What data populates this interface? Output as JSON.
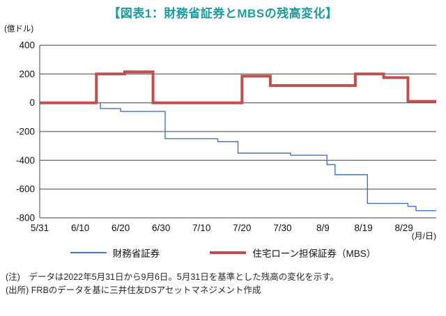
{
  "page": {
    "title": "【図表1：財務省証券とMBSの残高変化】",
    "title_color": "#1a9b9b",
    "notes": [
      "(注)　データは2022年5月31日から9月6日。5月31日を基準とした残高の変化を示す。",
      "(出所) FRBのデータを基に三井住友DSアセットマネジメント作成"
    ]
  },
  "chart_data": {
    "type": "line",
    "title": "【図表1：財務省証券とMBSの残高変化】",
    "y_axis_unit": "(億ドル)",
    "x_axis_unit": "(月/日)",
    "ylim": [
      -800,
      400
    ],
    "y_ticks": [
      400,
      200,
      0,
      -200,
      -400,
      -600,
      -800
    ],
    "grid": true,
    "legend_position": "bottom",
    "x_domain_days": [
      0,
      98
    ],
    "x_ticks": [
      {
        "pos": 0,
        "label": "5/31"
      },
      {
        "pos": 10,
        "label": "6/10"
      },
      {
        "pos": 20,
        "label": "6/20"
      },
      {
        "pos": 30,
        "label": "6/30"
      },
      {
        "pos": 40,
        "label": "7/10"
      },
      {
        "pos": 50,
        "label": "7/20"
      },
      {
        "pos": 60,
        "label": "7/30"
      },
      {
        "pos": 70,
        "label": "8/9"
      },
      {
        "pos": 80,
        "label": "8/19"
      },
      {
        "pos": 90,
        "label": "8/29"
      }
    ],
    "series": [
      {
        "name": "財務省証券",
        "color": "#4472c4",
        "width": 1.4,
        "points": [
          [
            0,
            0
          ],
          [
            15,
            0
          ],
          [
            15,
            -40
          ],
          [
            20,
            -40
          ],
          [
            20,
            -60
          ],
          [
            31,
            -60
          ],
          [
            31,
            -250
          ],
          [
            44,
            -250
          ],
          [
            44,
            -270
          ],
          [
            49,
            -270
          ],
          [
            49,
            -350
          ],
          [
            62,
            -350
          ],
          [
            62,
            -365
          ],
          [
            71,
            -365
          ],
          [
            71,
            -430
          ],
          [
            73,
            -430
          ],
          [
            73,
            -500
          ],
          [
            81,
            -500
          ],
          [
            81,
            -700
          ],
          [
            91,
            -700
          ],
          [
            91,
            -720
          ],
          [
            93,
            -720
          ],
          [
            93,
            -750
          ],
          [
            98,
            -750
          ]
        ]
      },
      {
        "name": "住宅ローン担保証券（MBS）",
        "color": "#c0504d",
        "width": 4,
        "points": [
          [
            0,
            0
          ],
          [
            14,
            0
          ],
          [
            14,
            200
          ],
          [
            21,
            200
          ],
          [
            21,
            215
          ],
          [
            28,
            215
          ],
          [
            28,
            0
          ],
          [
            50,
            0
          ],
          [
            50,
            185
          ],
          [
            57,
            185
          ],
          [
            57,
            120
          ],
          [
            78,
            120
          ],
          [
            78,
            200
          ],
          [
            85,
            200
          ],
          [
            85,
            175
          ],
          [
            91,
            175
          ],
          [
            91,
            10
          ],
          [
            98,
            10
          ]
        ]
      }
    ]
  }
}
